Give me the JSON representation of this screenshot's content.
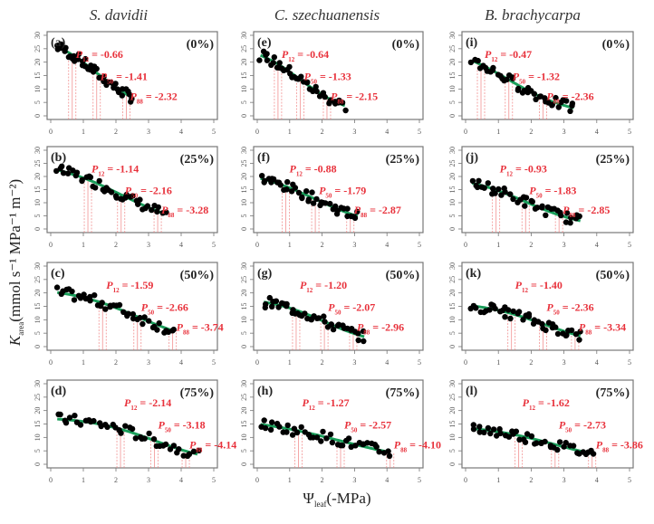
{
  "chart_data": {
    "type": "scatter",
    "layout": "grid-4-rows-3-cols",
    "column_titles": [
      "S. davidii",
      "C. szechuanensis",
      "B. brachycarpa"
    ],
    "row_treatments": [
      "(0%)",
      "(25%)",
      "(50%)",
      "(75%)"
    ],
    "xlabel_main": "Ψ",
    "xlabel_sub": "leaf",
    "xlabel_unit": "(-MPa)",
    "ylabel_main": "K",
    "ylabel_sub": "area",
    "ylabel_unit": "(mmol s⁻¹ MPa⁻¹ m⁻²)",
    "xlim": [
      0,
      5
    ],
    "ylim": [
      0,
      30
    ],
    "xticks": [
      0,
      1,
      2,
      3,
      4,
      5
    ],
    "yticks": [
      0,
      5,
      10,
      15,
      20,
      25,
      30
    ],
    "colors": {
      "points": "#000000",
      "fit": "#1a9e5a",
      "p_lines": "#f08080",
      "p_text": "#e8323c"
    },
    "panels": [
      {
        "id": "a",
        "col": 0,
        "row": 0,
        "letter": "(a)",
        "treatment": "(0%)",
        "kmax": 27,
        "P12": -0.66,
        "P50": -1.41,
        "P88": -2.32,
        "xmin": 0.2,
        "xmax": 2.5
      },
      {
        "id": "b",
        "col": 0,
        "row": 1,
        "letter": "(b)",
        "treatment": "(25%)",
        "kmax": 23,
        "P12": -1.14,
        "P50": -2.16,
        "P88": -3.28,
        "xmin": 0.2,
        "xmax": 3.5
      },
      {
        "id": "c",
        "col": 0,
        "row": 2,
        "letter": "(c)",
        "treatment": "(50%)",
        "kmax": 20.5,
        "P12": -1.59,
        "P50": -2.66,
        "P88": -3.74,
        "xmin": 0.2,
        "xmax": 3.8
      },
      {
        "id": "d",
        "col": 0,
        "row": 3,
        "letter": "(d)",
        "treatment": "(75%)",
        "kmax": 17,
        "P12": -2.14,
        "P50": -3.18,
        "P88": -4.14,
        "xmin": 0.2,
        "xmax": 4.5
      },
      {
        "id": "e",
        "col": 1,
        "row": 0,
        "letter": "(e)",
        "treatment": "(0%)",
        "kmax": 23,
        "P12": -0.64,
        "P50": -1.33,
        "P88": -2.15,
        "xmin": 0.1,
        "xmax": 2.7
      },
      {
        "id": "f",
        "col": 1,
        "row": 1,
        "letter": "(f)",
        "treatment": "(25%)",
        "kmax": 19.5,
        "P12": -0.88,
        "P50": -1.79,
        "P88": -2.87,
        "xmin": 0.1,
        "xmax": 3.1
      },
      {
        "id": "g",
        "col": 1,
        "row": 2,
        "letter": "(g)",
        "treatment": "(50%)",
        "kmax": 17,
        "P12": -1.2,
        "P50": -2.07,
        "P88": -2.96,
        "xmin": 0.2,
        "xmax": 3.3
      },
      {
        "id": "h",
        "col": 1,
        "row": 3,
        "letter": "(h)",
        "treatment": "(75%)",
        "kmax": 15,
        "P12": -1.27,
        "P50": -2.57,
        "P88": -4.1,
        "xmin": 0.1,
        "xmax": 4.1
      },
      {
        "id": "i",
        "col": 2,
        "row": 0,
        "letter": "(i)",
        "treatment": "(0%)",
        "kmax": 21.5,
        "P12": -0.47,
        "P50": -1.32,
        "P88": -2.36,
        "xmin": 0.2,
        "xmax": 3.3
      },
      {
        "id": "j",
        "col": 2,
        "row": 1,
        "letter": "(j)",
        "treatment": "(25%)",
        "kmax": 18,
        "P12": -0.93,
        "P50": -1.83,
        "P88": -2.85,
        "xmin": 0.2,
        "xmax": 3.5
      },
      {
        "id": "k",
        "col": 2,
        "row": 2,
        "letter": "(k)",
        "treatment": "(50%)",
        "kmax": 15.5,
        "P12": -1.4,
        "P50": -2.36,
        "P88": -3.34,
        "xmin": 0.2,
        "xmax": 3.5
      },
      {
        "id": "l",
        "col": 2,
        "row": 3,
        "letter": "(l)",
        "treatment": "(75%)",
        "kmax": 13.5,
        "P12": -1.62,
        "P50": -2.73,
        "P88": -3.86,
        "xmin": 0.2,
        "xmax": 3.9
      }
    ]
  }
}
